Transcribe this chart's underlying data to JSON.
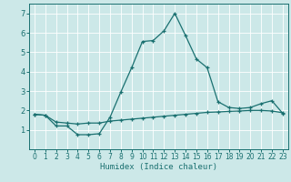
{
  "xlabel": "Humidex (Indice chaleur)",
  "bg_color": "#cce8e8",
  "grid_color": "#ffffff",
  "line_color": "#1a7070",
  "xlim": [
    -0.5,
    23.5
  ],
  "ylim": [
    0,
    7.5
  ],
  "xticks": [
    0,
    1,
    2,
    3,
    4,
    5,
    6,
    7,
    8,
    9,
    10,
    11,
    12,
    13,
    14,
    15,
    16,
    17,
    18,
    19,
    20,
    21,
    22,
    23
  ],
  "yticks": [
    1,
    2,
    3,
    4,
    5,
    6,
    7
  ],
  "series1_x": [
    0,
    1,
    2,
    3,
    4,
    5,
    6,
    7,
    8,
    9,
    10,
    11,
    12,
    13,
    14,
    15,
    16,
    17,
    18,
    19,
    20,
    21,
    22,
    23
  ],
  "series1_y": [
    1.8,
    1.75,
    1.2,
    1.2,
    0.75,
    0.75,
    0.8,
    1.65,
    2.95,
    4.2,
    5.55,
    5.6,
    6.1,
    7.0,
    5.85,
    4.65,
    4.2,
    2.45,
    2.15,
    2.1,
    2.15,
    2.35,
    2.5,
    1.85
  ],
  "series2_x": [
    0,
    1,
    2,
    3,
    4,
    5,
    6,
    7,
    8,
    9,
    10,
    11,
    12,
    13,
    14,
    15,
    16,
    17,
    18,
    19,
    20,
    21,
    22,
    23
  ],
  "series2_y": [
    1.8,
    1.75,
    1.4,
    1.35,
    1.3,
    1.35,
    1.35,
    1.45,
    1.5,
    1.55,
    1.6,
    1.65,
    1.7,
    1.75,
    1.8,
    1.85,
    1.9,
    1.92,
    1.95,
    1.97,
    2.0,
    2.0,
    1.97,
    1.88
  ]
}
